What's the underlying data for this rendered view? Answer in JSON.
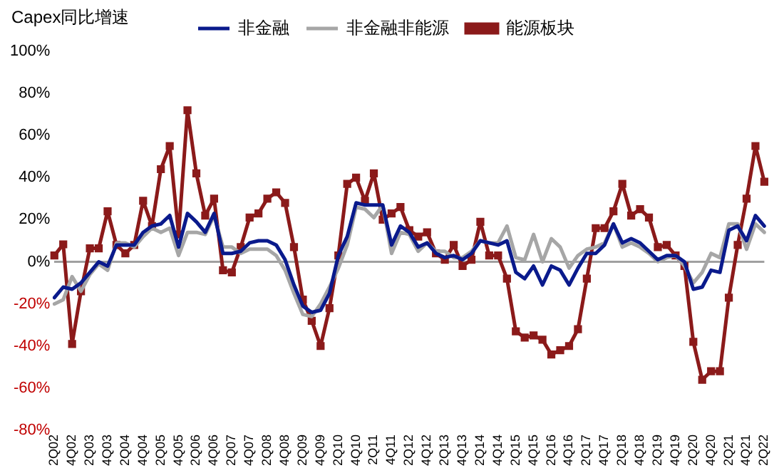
{
  "chart_data": {
    "type": "line",
    "title": "Capex同比增速",
    "legend": "top",
    "categories": [
      "2Q02",
      null,
      "4Q02",
      null,
      "2Q03",
      null,
      "4Q03",
      null,
      "2Q04",
      null,
      "4Q04",
      null,
      "2Q05",
      null,
      "4Q05",
      null,
      "2Q06",
      null,
      "4Q06",
      null,
      "2Q07",
      null,
      "4Q07",
      null,
      "2Q08",
      null,
      "4Q08",
      null,
      "2Q09",
      null,
      "4Q09",
      null,
      "2Q10",
      null,
      "4Q10",
      null,
      "2Q11",
      null,
      "4Q11",
      null,
      "2Q12",
      null,
      "4Q12",
      null,
      "2Q13",
      null,
      "4Q13",
      null,
      "2Q14",
      null,
      "4Q14",
      null,
      "2Q15",
      null,
      "4Q15",
      null,
      "2Q16",
      null,
      "4Q16",
      null,
      "2Q17",
      null,
      "4Q17",
      null,
      "2Q18",
      null,
      "4Q18",
      null,
      "2Q19",
      null,
      "4Q19",
      null,
      "2Q20",
      null,
      "4Q20",
      null,
      "2Q21",
      null,
      "4Q21",
      null,
      "2Q22"
    ],
    "ylim": [
      -80,
      100
    ],
    "yticks": [
      {
        "value": -80,
        "label": "-80%"
      },
      {
        "value": -60,
        "label": "-60%"
      },
      {
        "value": -40,
        "label": "-40%"
      },
      {
        "value": -20,
        "label": "-20%"
      },
      {
        "value": 0,
        "label": "0%"
      },
      {
        "value": 20,
        "label": "20%"
      },
      {
        "value": 40,
        "label": "40%"
      },
      {
        "value": 60,
        "label": "60%"
      },
      {
        "value": 80,
        "label": "80%"
      },
      {
        "value": 100,
        "label": "100%"
      }
    ],
    "series": [
      {
        "name": "非金融",
        "color": "#0a1a8c",
        "values": [
          -17,
          -12,
          -13,
          -10,
          -5,
          0,
          -2,
          8,
          8,
          8,
          14,
          17,
          18,
          22,
          7,
          23,
          19,
          14,
          23,
          4,
          4,
          5,
          9,
          10,
          10,
          8,
          1,
          -11,
          -21,
          -24,
          -23,
          -15,
          3,
          12,
          28,
          27,
          27,
          27,
          8,
          17,
          14,
          7,
          9,
          4,
          2,
          3,
          1,
          4,
          10,
          9,
          8,
          10,
          -5,
          -8,
          -2,
          -11,
          -2,
          -4,
          -11,
          -3,
          4,
          4,
          8,
          18,
          9,
          11,
          9,
          5,
          1,
          3,
          3,
          0,
          -13,
          -12,
          -4,
          -5,
          15,
          17,
          10,
          22,
          17
        ]
      },
      {
        "name": "非金融非能源",
        "color": "#a6a6a6",
        "values": [
          -20,
          -18,
          -7,
          -14,
          -6,
          -1,
          -4,
          9,
          9,
          7,
          12,
          16,
          14,
          16,
          3,
          14,
          14,
          13,
          22,
          7,
          7,
          4,
          6,
          6,
          6,
          3,
          -4,
          -15,
          -25,
          -26,
          -20,
          -12,
          -3,
          8,
          26,
          25,
          21,
          27,
          4,
          14,
          13,
          5,
          9,
          5,
          5,
          2,
          2,
          5,
          10,
          9,
          9,
          17,
          2,
          1,
          13,
          0,
          11,
          7,
          -3,
          3,
          6,
          7,
          9,
          18,
          7,
          9,
          7,
          4,
          0,
          2,
          3,
          -2,
          -10,
          -5,
          4,
          2,
          18,
          18,
          6,
          18,
          14
        ]
      },
      {
        "name": "能源板块",
        "color": "#8b1a1a",
        "marker": "square",
        "values": [
          3,
          8.3,
          -39,
          -14,
          6.4,
          6.4,
          24,
          8,
          4,
          8,
          29,
          17,
          44,
          55,
          13,
          72,
          42,
          22,
          30,
          -4,
          -5,
          7,
          21,
          23,
          30,
          33,
          28,
          7,
          -18,
          -28,
          -40,
          -22,
          3,
          37,
          40,
          29,
          42,
          20,
          23,
          26,
          15,
          12,
          14,
          4,
          1,
          8,
          -2,
          1,
          19,
          3,
          3,
          -8,
          -33,
          -36,
          -35,
          -37,
          -44,
          -42,
          -40,
          -32,
          -8,
          16,
          16,
          24,
          37,
          22,
          25,
          21,
          7,
          8,
          3,
          -2,
          -38,
          -56,
          -52,
          -52,
          -17,
          8,
          30,
          55,
          38
        ]
      }
    ]
  }
}
